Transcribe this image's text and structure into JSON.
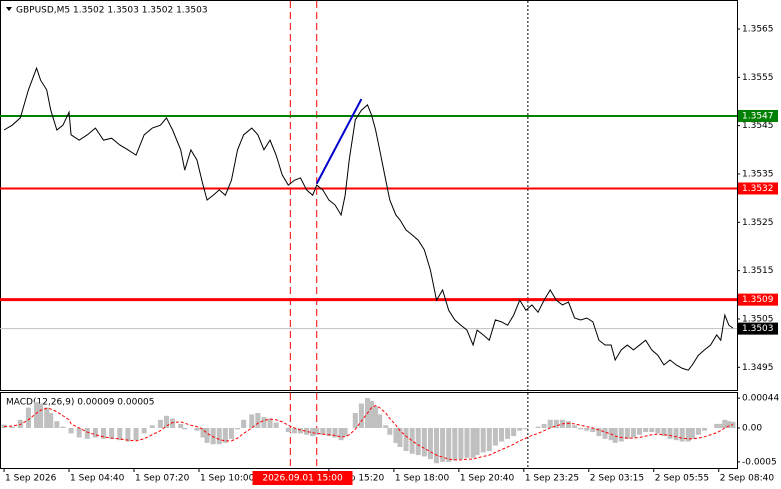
{
  "chart_data": [
    {
      "type": "line",
      "title": "GBPUSD,M5  1.3502 1.3503 1.3502 1.3503",
      "x": [
        0,
        4,
        8,
        12,
        16,
        18,
        21,
        23,
        26,
        29,
        32,
        33,
        37,
        41,
        45,
        49,
        53,
        57,
        61,
        65,
        69,
        73,
        77,
        80,
        83,
        87,
        89,
        92,
        95,
        98,
        100,
        103,
        106,
        109,
        112,
        115,
        118,
        122,
        125,
        128,
        131,
        134,
        137,
        140,
        143,
        146,
        149,
        152,
        154,
        157,
        160,
        163,
        166,
        168,
        170,
        173,
        176,
        179,
        181,
        183,
        185,
        188,
        190,
        193,
        195,
        198,
        201,
        204,
        207,
        210,
        213,
        216,
        219,
        222,
        225,
        228,
        231,
        233,
        236,
        239,
        242,
        245,
        248,
        251,
        254,
        257,
        260,
        263,
        266,
        269,
        272,
        275,
        278,
        281,
        284,
        287,
        290,
        293,
        296,
        299,
        301,
        304,
        307,
        310,
        313,
        316,
        319,
        322,
        325,
        328,
        331,
        334,
        337,
        339,
        342,
        345,
        348,
        351,
        353,
        355,
        357,
        359
      ],
      "values": [
        1.35441,
        1.35451,
        1.35466,
        1.35524,
        1.35569,
        1.35544,
        1.35524,
        1.35482,
        1.35441,
        1.35451,
        1.35478,
        1.35431,
        1.3542,
        1.35431,
        1.35445,
        1.3542,
        1.35424,
        1.3541,
        1.354,
        1.35389,
        1.35431,
        1.35445,
        1.35451,
        1.35466,
        1.35441,
        1.354,
        1.35358,
        1.354,
        1.35379,
        1.35327,
        1.35296,
        1.35306,
        1.35317,
        1.35306,
        1.35337,
        1.354,
        1.35431,
        1.35445,
        1.35431,
        1.354,
        1.3542,
        1.35389,
        1.35348,
        1.35327,
        1.35337,
        1.35342,
        1.35317,
        1.35306,
        1.35327,
        1.35317,
        1.35296,
        1.35286,
        1.35265,
        1.35306,
        1.35379,
        1.35462,
        1.35482,
        1.35493,
        1.35472,
        1.35441,
        1.354,
        1.35337,
        1.35296,
        1.35265,
        1.35255,
        1.35234,
        1.35224,
        1.35213,
        1.35193,
        1.35151,
        1.35089,
        1.3511,
        1.35068,
        1.35048,
        1.35037,
        1.35027,
        1.34996,
        1.35027,
        1.35017,
        1.35006,
        1.35048,
        1.35044,
        1.35037,
        1.35058,
        1.35089,
        1.35068,
        1.35079,
        1.35064,
        1.35089,
        1.3511,
        1.35089,
        1.35079,
        1.35085,
        1.35052,
        1.35048,
        1.35052,
        1.35044,
        1.35006,
        1.34996,
        1.34996,
        1.34965,
        1.34986,
        1.34996,
        1.34986,
        1.34996,
        1.35006,
        1.34986,
        1.34975,
        1.34955,
        1.34965,
        1.34955,
        1.34948,
        1.34944,
        1.34955,
        1.34975,
        1.34986,
        1.34996,
        1.35017,
        1.35006,
        1.35058,
        1.35037,
        1.35031
      ],
      "color": "#000000",
      "xlim": [
        -2,
        361
      ],
      "ylim": [
        1.34903,
        1.3571
      ],
      "yticks": [
        1.3565,
        1.3555,
        1.3545,
        1.3535,
        1.3525,
        1.3515,
        1.3505,
        1.3495
      ],
      "hlines": [
        {
          "value": 1.3547,
          "color": "#008000",
          "label_bg": "#008000",
          "width": 2
        },
        {
          "value": 1.3532,
          "color": "#ff0000",
          "label_bg": "#ff0000",
          "width": 2
        },
        {
          "value": 1.3509,
          "color": "#ff0000",
          "label_bg": "#ff0000",
          "width": 3
        },
        {
          "value": 1.3503,
          "color": "#c0c0c0",
          "label_bg": "#000000",
          "width": 1
        }
      ],
      "vlines": [
        {
          "x": 141,
          "color": "#ff0000",
          "style": "dashed"
        },
        {
          "x": 154,
          "color": "#ff0000",
          "style": "dashed"
        },
        {
          "x": 258,
          "color": "#000000",
          "style": "dotted"
        }
      ],
      "trendline": {
        "x": [
          154,
          176
        ],
        "values": [
          1.3533,
          1.35505
        ],
        "color": "#0000cd"
      }
    },
    {
      "type": "macd",
      "title": "MACD(12,26,9) 0.00009 0.00005",
      "x": [
        0,
        4,
        8,
        12,
        16,
        18,
        21,
        23,
        26,
        29,
        32,
        33,
        37,
        41,
        45,
        49,
        53,
        57,
        61,
        65,
        69,
        73,
        77,
        80,
        83,
        87,
        89,
        92,
        95,
        98,
        100,
        103,
        106,
        109,
        112,
        115,
        118,
        122,
        125,
        128,
        131,
        134,
        137,
        140,
        143,
        146,
        149,
        152,
        154,
        157,
        160,
        163,
        166,
        168,
        170,
        173,
        176,
        179,
        181,
        183,
        185,
        188,
        190,
        193,
        195,
        198,
        201,
        204,
        207,
        210,
        213,
        216,
        219,
        222,
        225,
        228,
        231,
        233,
        236,
        239,
        242,
        245,
        248,
        251,
        254,
        257,
        260,
        263,
        266,
        269,
        272,
        275,
        278,
        281,
        284,
        287,
        290,
        293,
        296,
        299,
        301,
        304,
        307,
        310,
        313,
        316,
        319,
        322,
        325,
        328,
        331,
        334,
        337,
        339,
        342,
        345,
        348,
        351,
        353,
        355,
        357,
        359
      ],
      "histogram": {
        "color": "#c0c0c0",
        "values": [
          5e-05,
          2e-05,
          0.00012,
          0.0003,
          0.00038,
          0.00036,
          0.0003,
          0.00022,
          0.0001,
          2e-05,
          0,
          -8e-05,
          -0.00014,
          -0.00016,
          -0.00014,
          -0.00016,
          -0.00016,
          -0.00018,
          -0.0002,
          -0.00018,
          -8e-05,
          4e-05,
          0.00012,
          0.00018,
          0.00014,
          6e-05,
          -2e-05,
          0,
          -4e-05,
          -0.00014,
          -0.00022,
          -0.00024,
          -0.00024,
          -0.00022,
          -0.00016,
          -2e-05,
          0.00012,
          0.0002,
          0.00022,
          0.00016,
          0.00014,
          8e-05,
          0,
          -6e-05,
          -8e-05,
          -8e-05,
          -0.0001,
          -0.00012,
          -0.0001,
          -0.0001,
          -0.00012,
          -0.00014,
          -0.00018,
          -0.00012,
          0,
          0.00022,
          0.00036,
          0.00044,
          0.0004,
          0.00032,
          0.0002,
          4e-05,
          -0.0001,
          -0.00022,
          -0.00028,
          -0.00034,
          -0.00038,
          -0.0004,
          -0.00042,
          -0.00046,
          -0.00052,
          -0.0005,
          -0.0005,
          -0.00048,
          -0.00046,
          -0.00044,
          -0.00044,
          -0.0004,
          -0.00036,
          -0.00034,
          -0.00026,
          -0.0002,
          -0.00016,
          -0.00012,
          -4e-05,
          -2e-05,
          0,
          2e-05,
          6e-05,
          0.00012,
          0.00012,
          0.00012,
          0.0001,
          4e-05,
          -2e-05,
          -4e-05,
          -6e-05,
          -0.00012,
          -0.00016,
          -0.00018,
          -0.00022,
          -0.0002,
          -0.00016,
          -0.00014,
          -0.0001,
          -6e-05,
          -6e-05,
          -8e-05,
          -0.00012,
          -0.00016,
          -0.00018,
          -0.0002,
          -0.0002,
          -0.00016,
          -0.0001,
          -4e-05,
          0,
          6e-05,
          6e-05,
          0.00012,
          0.0001,
          9e-05
        ]
      },
      "signal": {
        "color": "#ff0000",
        "values": [
          2e-05,
          3e-05,
          5e-05,
          0.00012,
          0.00022,
          0.00026,
          0.00029,
          0.00028,
          0.00024,
          0.00018,
          0.00012,
          6e-05,
          0,
          -6e-05,
          -0.0001,
          -0.00013,
          -0.00015,
          -0.00016,
          -0.00018,
          -0.00019,
          -0.00016,
          -0.0001,
          -4e-05,
          3e-05,
          8e-05,
          9e-05,
          7e-05,
          4e-05,
          2e-05,
          -2e-05,
          -8e-05,
          -0.00013,
          -0.00017,
          -0.00019,
          -0.00019,
          -0.00015,
          -8e-05,
          0,
          7e-05,
          0.00011,
          0.00013,
          0.00012,
          9e-05,
          4e-05,
          0,
          -3e-05,
          -5e-05,
          -7e-05,
          -8e-05,
          -9e-05,
          -0.0001,
          -0.00011,
          -0.00013,
          -0.00013,
          -0.0001,
          -2e-05,
          0.0001,
          0.00022,
          0.0003,
          0.00033,
          0.0003,
          0.00022,
          0.00014,
          4e-05,
          -4e-05,
          -0.00012,
          -0.00019,
          -0.00025,
          -0.0003,
          -0.00035,
          -0.0004,
          -0.00043,
          -0.00046,
          -0.00047,
          -0.00047,
          -0.00046,
          -0.00046,
          -0.00044,
          -0.00042,
          -0.0004,
          -0.00036,
          -0.00032,
          -0.00028,
          -0.00024,
          -0.00019,
          -0.00015,
          -0.00011,
          -8e-05,
          -4e-05,
          0,
          3e-05,
          6e-05,
          7e-05,
          6e-05,
          4e-05,
          2e-05,
          0,
          -3e-05,
          -6e-05,
          -9e-05,
          -0.00012,
          -0.00014,
          -0.00015,
          -0.00015,
          -0.00014,
          -0.00012,
          -0.0001,
          -9e-05,
          -0.0001,
          -0.00011,
          -0.00013,
          -0.00015,
          -0.00016,
          -0.00016,
          -0.00015,
          -0.00013,
          -0.0001,
          -7e-05,
          -4e-05,
          0,
          3e-05,
          5e-05
        ]
      },
      "xlim": [
        -2,
        361
      ],
      "ylim": [
        -0.00059,
        0.00053
      ],
      "yticks": [
        0.00044,
        {
          "value": 0,
          "label": "0.00"
        },
        -0.0005
      ],
      "xticks": [
        {
          "value": 0,
          "label": "1 Sep 2026"
        },
        {
          "value": 32,
          "label": "1 Sep 04:40"
        },
        {
          "value": 64,
          "label": "1 Sep 07:20"
        },
        {
          "value": 96,
          "label": "1 Sep 10:00"
        },
        {
          "value": 160,
          "label": "1 Sep 15:20"
        },
        {
          "value": 192,
          "label": "1 Sep 18:00"
        },
        {
          "value": 224,
          "label": "1 Sep 20:40"
        },
        {
          "value": 256,
          "label": "1 Sep 23:25"
        },
        {
          "value": 288,
          "label": "2 Sep 03:15"
        },
        {
          "value": 320,
          "label": "2 Sep 05:55"
        },
        {
          "value": 352,
          "label": "2 Sep 08:40"
        }
      ],
      "x_highlight": {
        "value": 147,
        "label": "2026.09.01 15:00"
      }
    }
  ]
}
